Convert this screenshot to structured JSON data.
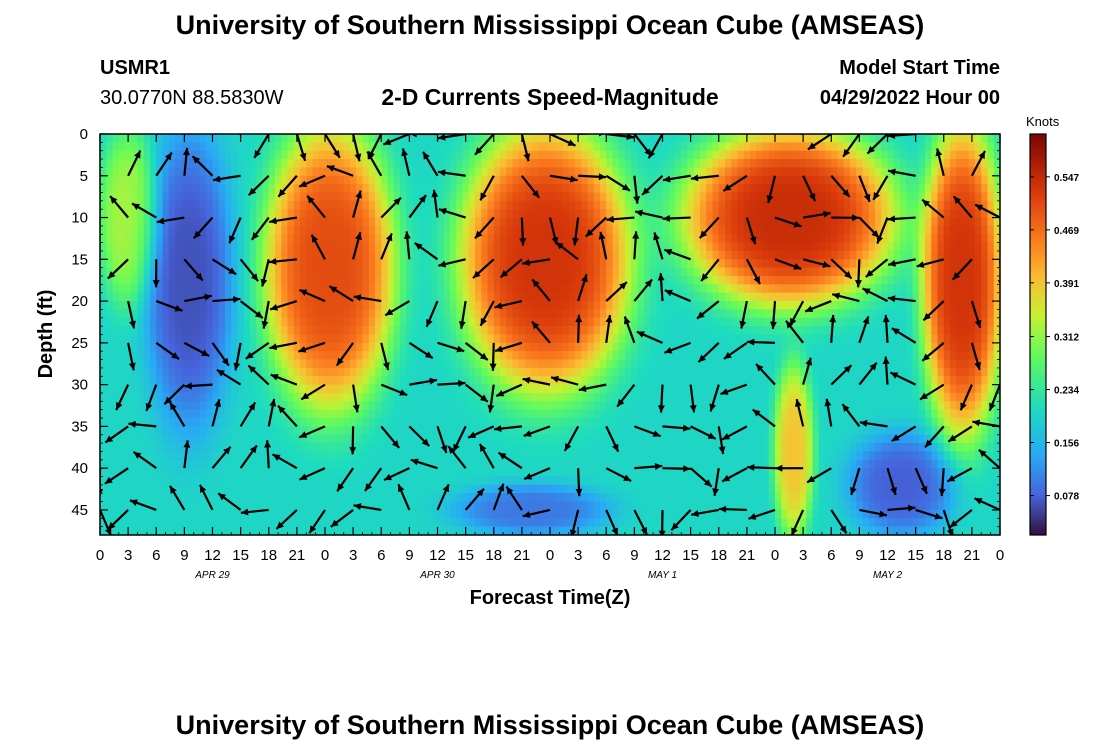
{
  "header": {
    "title": "University of Southern Mississippi Ocean Cube (AMSEAS)",
    "station": "USMR1",
    "coords": "30.0770N  88.5830W",
    "model_start_label": "Model Start Time",
    "model_start_value": "04/29/2022 Hour 00"
  },
  "footer": {
    "title": "University of Southern Mississippi Ocean Cube (AMSEAS)"
  },
  "chart_data": {
    "type": "heatmap",
    "title": "2-D Currents Speed-Magnitude",
    "xlabel": "Forecast Time(Z)",
    "ylabel": "Depth (ft)",
    "x_tick_labels": [
      "0",
      "3",
      "6",
      "9",
      "12",
      "15",
      "18",
      "21",
      "0",
      "3",
      "6",
      "9",
      "12",
      "15",
      "18",
      "21",
      "0",
      "3",
      "6",
      "9",
      "12",
      "15",
      "18",
      "21",
      "0",
      "3",
      "6",
      "9",
      "12",
      "15",
      "18",
      "21",
      "0"
    ],
    "xlim_hours": [
      0,
      96
    ],
    "day_labels": [
      {
        "label": "APR 29",
        "hour": 12
      },
      {
        "label": "APR 30",
        "hour": 36
      },
      {
        "label": "MAY 1",
        "hour": 60
      },
      {
        "label": "MAY 2",
        "hour": 84
      }
    ],
    "y_ticks": [
      0,
      5,
      10,
      15,
      20,
      25,
      30,
      35,
      40,
      45
    ],
    "ylim": [
      0,
      48
    ],
    "y_inverted": true,
    "colorbar": {
      "label": "Knots",
      "ticks": [
        0.078,
        0.156,
        0.234,
        0.312,
        0.391,
        0.469,
        0.547
      ],
      "range": [
        0.02,
        0.61
      ],
      "colormap": "turbo"
    },
    "vectors": "arrows every 3 hours at 5 ft depth intervals showing current direction",
    "speed_features_knots": [
      {
        "hours": [
          5,
          14
        ],
        "depth_ft": [
          0,
          35
        ],
        "speed": 0.06
      },
      {
        "hours": [
          18,
          31
        ],
        "depth_ft": [
          0,
          32
        ],
        "speed": 0.52
      },
      {
        "hours": [
          39,
          56
        ],
        "depth_ft": [
          0,
          30
        ],
        "speed": 0.55
      },
      {
        "hours": [
          63,
          84
        ],
        "depth_ft": [
          0,
          20
        ],
        "speed": 0.56
      },
      {
        "hours": [
          88,
          96
        ],
        "depth_ft": [
          0,
          35
        ],
        "speed": 0.55
      },
      {
        "hours": [
          72,
          76
        ],
        "depth_ft": [
          28,
          48
        ],
        "speed": 0.4
      },
      {
        "hours": [
          80,
          91
        ],
        "depth_ft": [
          36,
          48
        ],
        "speed": 0.07
      },
      {
        "hours": [
          38,
          54
        ],
        "depth_ft": [
          42,
          48
        ],
        "speed": 0.09
      },
      {
        "hours": [
          0,
          6
        ],
        "depth_ft": [
          0,
          20
        ],
        "speed": 0.33
      }
    ]
  }
}
